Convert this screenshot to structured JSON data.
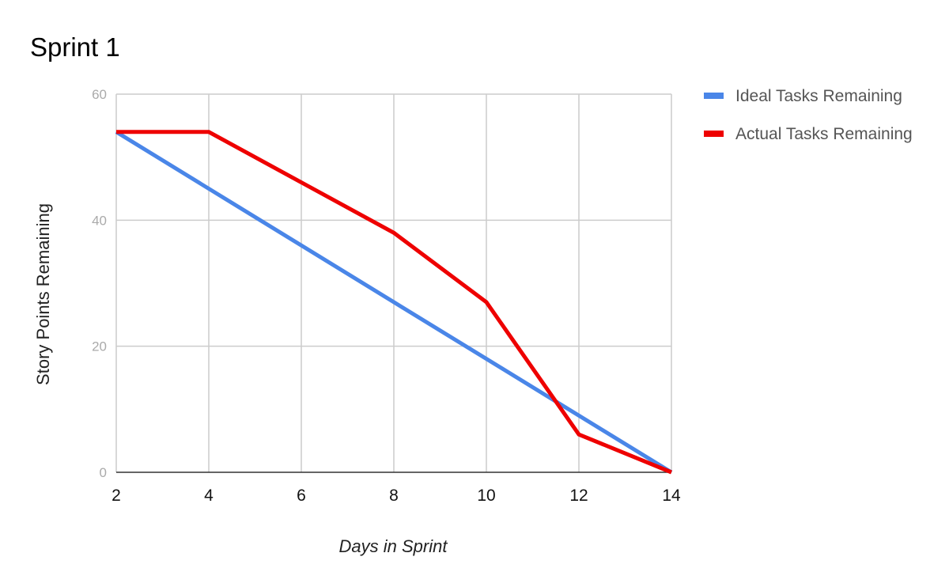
{
  "chart_data": {
    "type": "line",
    "title": "Sprint 1",
    "xlabel": "Days in Sprint",
    "ylabel": "Story Points Remaining",
    "xlim": [
      2,
      14
    ],
    "ylim": [
      0,
      60
    ],
    "x_ticks": [
      "2",
      "4",
      "6",
      "8",
      "10",
      "12",
      "14"
    ],
    "y_ticks": [
      "0",
      "20",
      "40",
      "60"
    ],
    "x_tick_values": [
      2,
      4,
      6,
      8,
      10,
      12,
      14
    ],
    "y_tick_values": [
      0,
      20,
      40,
      60
    ],
    "grid": true,
    "legend_position": "right",
    "series": [
      {
        "name": "Ideal Tasks Remaining",
        "color": "#4a86e8",
        "x": [
          2,
          14
        ],
        "y": [
          54,
          0
        ]
      },
      {
        "name": "Actual Tasks Remaining",
        "color": "#ee0000",
        "x": [
          2,
          4,
          6,
          8,
          10,
          12,
          14
        ],
        "y": [
          54,
          54,
          46,
          38,
          27,
          6,
          0
        ]
      }
    ]
  }
}
